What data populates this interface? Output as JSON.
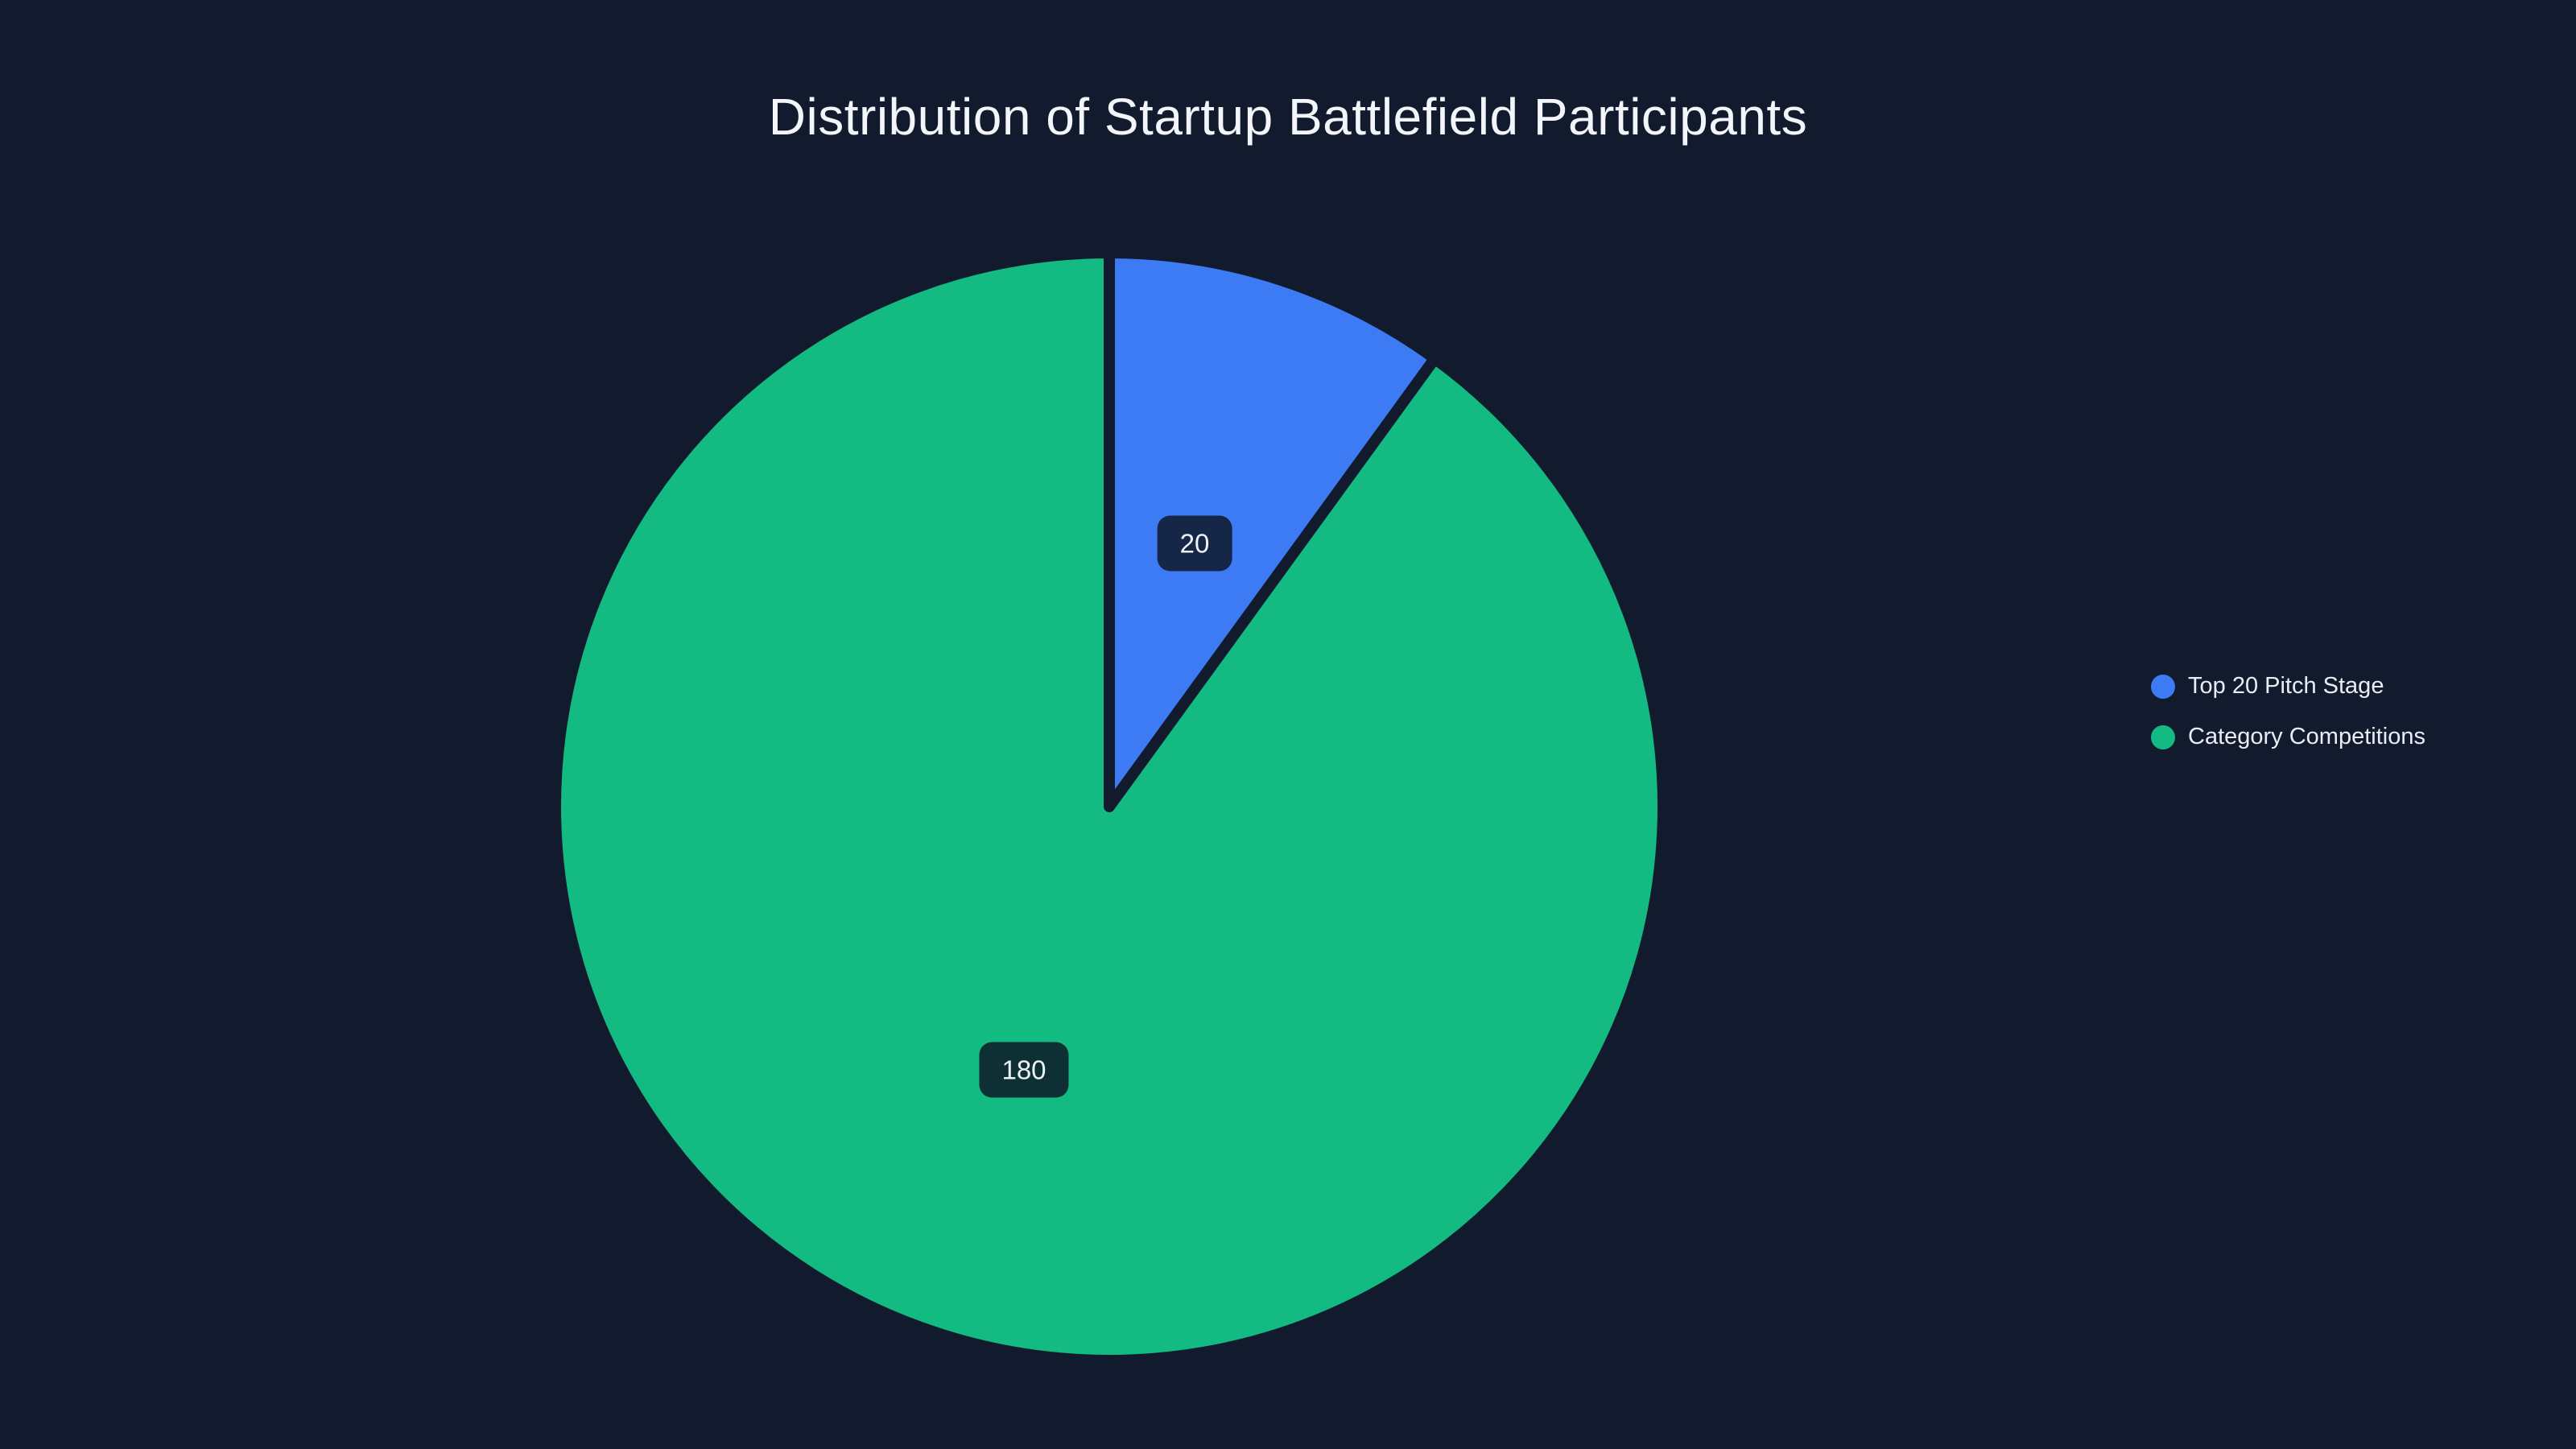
{
  "title": "Distribution of Startup Battlefield Participants",
  "chart_data": {
    "type": "pie",
    "title": "Distribution of Startup Battlefield Participants",
    "series": [
      {
        "label": "Top 20 Pitch Stage",
        "value": 20,
        "color": "#3d7bf5"
      },
      {
        "label": "Category Competitions",
        "value": 180,
        "color": "#13ba82"
      }
    ],
    "total": 200,
    "data_labels": [
      "20",
      "180"
    ],
    "start_angle_deg": -90,
    "direction": "clockwise",
    "legend_position": "right"
  },
  "colors": {
    "background": "#121b2e",
    "label_box": "rgba(14,23,40,0.85)",
    "title_text": "#f2f5f9",
    "legend_text": "#e9edf3"
  }
}
